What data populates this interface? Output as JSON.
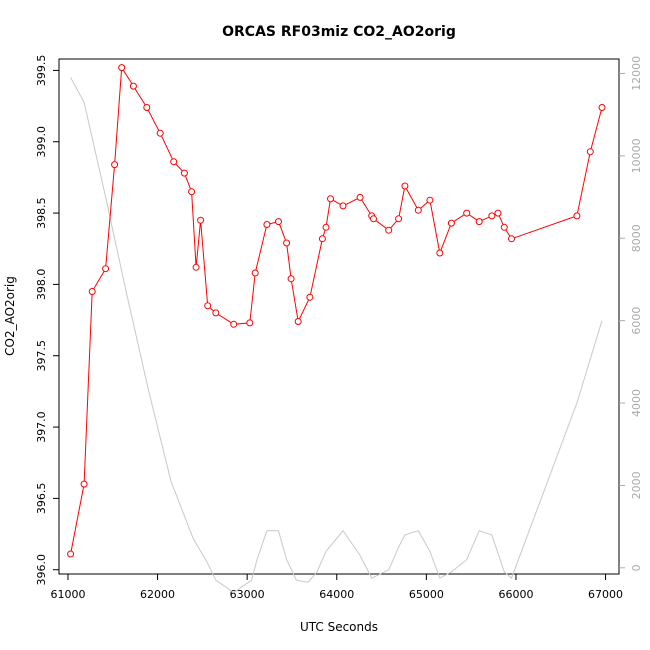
{
  "chart_data": {
    "type": "line",
    "title": "ORCAS RF03miz CO2_AO2orig",
    "xlabel": "UTC Seconds",
    "ylabel": "CO2_AO2orig",
    "xlim": [
      60900,
      67150
    ],
    "ylim": [
      395.97,
      399.58
    ],
    "y2lim": [
      -150,
      12350
    ],
    "x_ticks": [
      61000,
      62000,
      63000,
      64000,
      65000,
      66000,
      67000
    ],
    "y_ticks": [
      396.0,
      396.5,
      397.0,
      397.5,
      398.0,
      398.5,
      399.0,
      399.5
    ],
    "y2_ticks": [
      0,
      2000,
      4000,
      6000,
      8000,
      10000,
      12000
    ],
    "grid": false,
    "series": [
      {
        "axis": "left",
        "color": "#ff0000",
        "markers": true,
        "x": [
          61030,
          61180,
          61270,
          61420,
          61520,
          61600,
          61730,
          61880,
          62030,
          62180,
          62300,
          62380,
          62430,
          62480,
          62560,
          62650,
          62850,
          63030,
          63090,
          63220,
          63350,
          63440,
          63490,
          63570,
          63700,
          63840,
          63880,
          63930,
          64070,
          64260,
          64390,
          64410,
          64580,
          64690,
          64760,
          64910,
          65040,
          65150,
          65280,
          65450,
          65590,
          65730,
          65800,
          65870,
          65950,
          66680,
          66830,
          66960
        ],
        "y": [
          396.11,
          396.6,
          397.95,
          398.11,
          398.84,
          399.52,
          399.39,
          399.24,
          399.06,
          398.86,
          398.78,
          398.65,
          398.12,
          398.45,
          397.85,
          397.8,
          397.72,
          397.73,
          398.08,
          398.42,
          398.44,
          398.29,
          398.04,
          397.74,
          397.91,
          398.32,
          398.4,
          398.6,
          398.55,
          398.61,
          398.48,
          398.46,
          398.38,
          398.46,
          398.69,
          398.52,
          398.59,
          398.22,
          398.43,
          398.5,
          398.44,
          398.48,
          398.5,
          398.4,
          398.32,
          398.48,
          398.93,
          399.24
        ]
      },
      {
        "axis": "right",
        "color": "#c8c8c8",
        "markers": false,
        "x": [
          61030,
          61180,
          61420,
          61650,
          61900,
          62150,
          62400,
          62550,
          62650,
          62850,
          63050,
          63110,
          63220,
          63350,
          63440,
          63550,
          63680,
          63780,
          63880,
          64070,
          64260,
          64390,
          64580,
          64690,
          64760,
          64910,
          65040,
          65150,
          65280,
          65450,
          65590,
          65730,
          65870,
          65950,
          66680,
          66960
        ],
        "y": [
          11900,
          11300,
          9000,
          6700,
          4300,
          2100,
          700,
          150,
          -300,
          -600,
          -300,
          200,
          900,
          900,
          200,
          -300,
          -350,
          -100,
          400,
          900,
          300,
          -250,
          -50,
          500,
          800,
          900,
          400,
          -250,
          -100,
          200,
          900,
          800,
          -100,
          -250,
          4000,
          6000
        ]
      }
    ]
  }
}
